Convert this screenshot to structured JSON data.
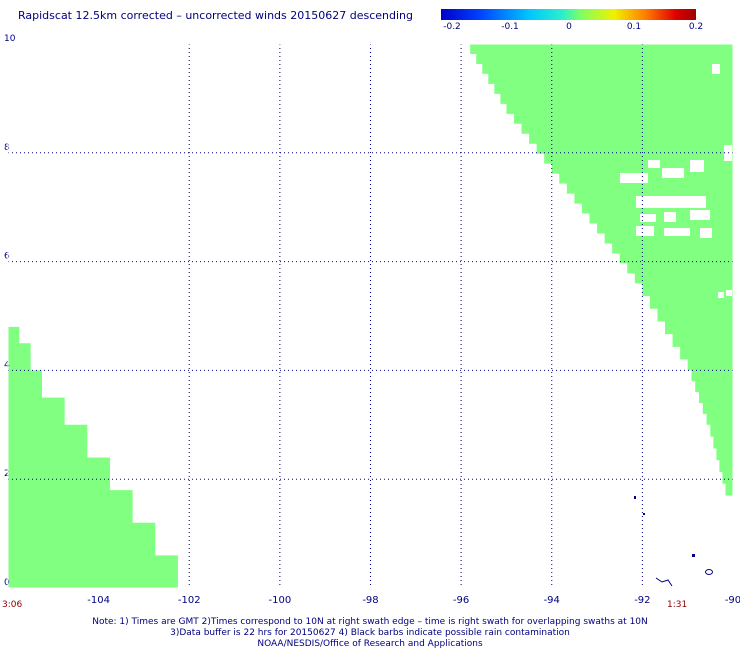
{
  "title": "Rapidscat 12.5km corrected – uncorrected winds 20150627 descending",
  "colorbar": {
    "labels": [
      "-0.2",
      "-0.1",
      "0",
      "0.1",
      "0.2"
    ],
    "values": [
      -0.2,
      -0.1,
      0,
      0.1,
      0.2
    ]
  },
  "map": {
    "lon_range": [
      -106,
      -90
    ],
    "lat_range": [
      0,
      10
    ],
    "x_ticks": [
      {
        "value": -104,
        "label": "-104"
      },
      {
        "value": -102,
        "label": "-102"
      },
      {
        "value": -100,
        "label": "-100"
      },
      {
        "value": -98,
        "label": "-98"
      },
      {
        "value": -96,
        "label": "-96"
      },
      {
        "value": -94,
        "label": "-94"
      },
      {
        "value": -92,
        "label": "-92"
      },
      {
        "value": -90,
        "label": "-90"
      }
    ],
    "y_ticks": [
      {
        "value": 0,
        "label": "0"
      },
      {
        "value": 2,
        "label": "2"
      },
      {
        "value": 4,
        "label": "4"
      },
      {
        "value": 6,
        "label": "6"
      },
      {
        "value": 8,
        "label": "8"
      },
      {
        "value": 10,
        "label": "10"
      }
    ],
    "swath_color": "#80ff80",
    "grid_color": "#000080",
    "left_swath_edge_lon": [
      -105.75,
      -105.5,
      -105.25,
      -104.75,
      -104.25,
      -103.75,
      -103.25,
      -102.75,
      -102.25,
      -101.75
    ],
    "left_swath_edge_lat": [
      4.8,
      4.5,
      4.0,
      3.5,
      3.0,
      2.4,
      1.8,
      1.2,
      0.6,
      0.0
    ],
    "right_swath_edge_lon": [
      -95.8,
      -95.0,
      -94.0,
      -93.0,
      -92.0,
      -91.0,
      -90.5,
      -90.1
    ],
    "right_swath_edge_lat": [
      10.0,
      8.9,
      7.8,
      6.7,
      5.6,
      4.2,
      3.0,
      1.7
    ]
  },
  "times": {
    "left": "3:06",
    "right": "1:31"
  },
  "notes": [
    "Note: 1) Times are GMT 2)Times correspond to 10N at right swath edge – time is right swath for overlapping swaths at 10N",
    "3)Data buffer is 22 hrs for 20150627 4) Black barbs indicate possible rain contamination",
    "NOAA/NESDIS/Office of Research and Applications"
  ]
}
